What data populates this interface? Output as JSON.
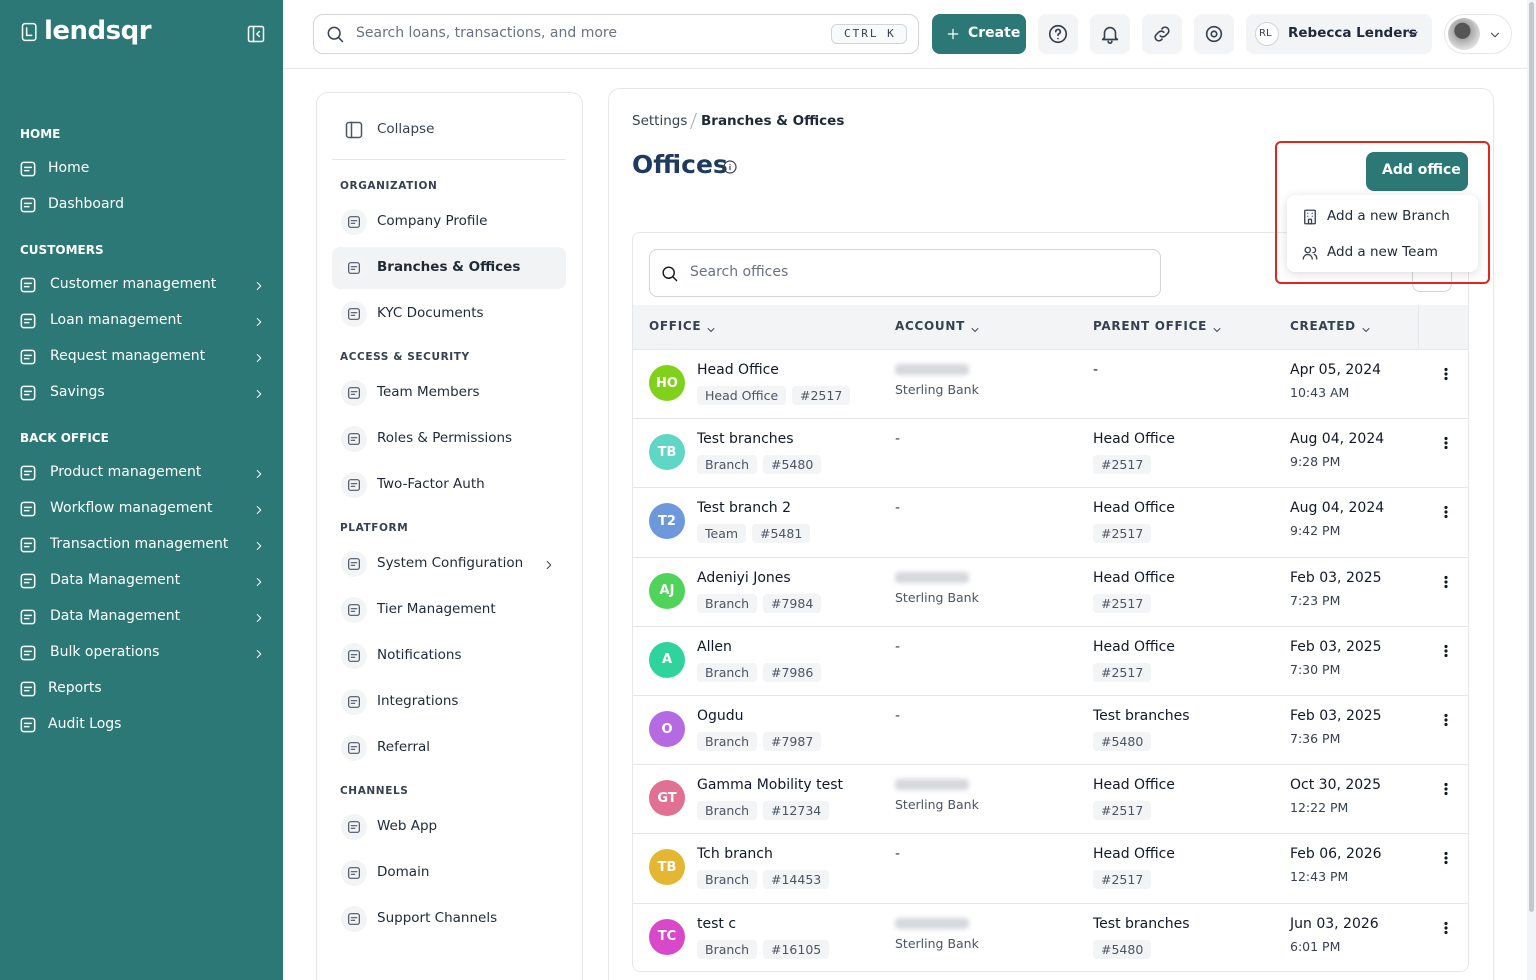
{
  "brand": {
    "name": "lendsqr"
  },
  "sidebar": {
    "sections": [
      {
        "title": "HOME",
        "items": [
          {
            "label": "Home"
          },
          {
            "label": "Dashboard"
          }
        ]
      },
      {
        "title": "CUSTOMERS",
        "items": [
          {
            "label": "Customer management",
            "expandable": true
          },
          {
            "label": "Loan management",
            "expandable": true
          },
          {
            "label": "Request management",
            "expandable": true
          },
          {
            "label": "Savings",
            "expandable": true
          }
        ]
      },
      {
        "title": "BACK OFFICE",
        "items": [
          {
            "label": "Product management",
            "expandable": true
          },
          {
            "label": "Workflow management",
            "expandable": true
          },
          {
            "label": "Transaction management",
            "expandable": true
          },
          {
            "label": "Data Management",
            "expandable": true
          },
          {
            "label": "Data Management",
            "expandable": true
          },
          {
            "label": "Bulk operations",
            "expandable": true
          },
          {
            "label": "Reports"
          },
          {
            "label": "Audit Logs"
          }
        ]
      }
    ]
  },
  "topbar": {
    "search_placeholder": "Search loans, transactions, and more",
    "shortcut": "CTRL K",
    "create": "Create",
    "user_initials": "RL",
    "user_name": "Rebecca Lenders"
  },
  "settings_nav": {
    "collapse": "Collapse",
    "groups": [
      {
        "title": "ORGANIZATION",
        "items": [
          {
            "label": "Company Profile"
          },
          {
            "label": "Branches & Offices",
            "active": true
          },
          {
            "label": "KYC Documents"
          }
        ]
      },
      {
        "title": "ACCESS & SECURITY",
        "items": [
          {
            "label": "Team Members"
          },
          {
            "label": "Roles & Permissions"
          },
          {
            "label": "Two-Factor Auth"
          }
        ]
      },
      {
        "title": "PLATFORM",
        "items": [
          {
            "label": "System Configuration",
            "expandable": true
          },
          {
            "label": "Tier Management"
          },
          {
            "label": "Notifications"
          },
          {
            "label": "Integrations"
          },
          {
            "label": "Referral"
          }
        ]
      },
      {
        "title": "CHANNELS",
        "items": [
          {
            "label": "Web App"
          },
          {
            "label": "Domain"
          },
          {
            "label": "Support Channels"
          }
        ]
      }
    ]
  },
  "breadcrumb": [
    "Settings",
    "Branches & Offices"
  ],
  "page": {
    "title": "Offices",
    "add_button": "Add office",
    "add_menu": [
      "Add a new Branch",
      "Add a new Team"
    ],
    "search_placeholder": "Search offices"
  },
  "table": {
    "columns": [
      "OFFICE",
      "ACCOUNT",
      "PARENT OFFICE",
      "CREATED"
    ],
    "rows": [
      {
        "initials": "HO",
        "color": "#7fd11b",
        "name": "Head Office",
        "type": "Head Office",
        "code": "#2517",
        "bank": "Sterling Bank",
        "parent": "-",
        "date": "Apr 05, 2024",
        "time": "10:43 AM"
      },
      {
        "initials": "TB",
        "color": "#5fd6c6",
        "name": "Test branches",
        "type": "Branch",
        "code": "#5480",
        "account": "-",
        "parent": "Head Office",
        "parent_code": "#2517",
        "date": "Aug 04, 2024",
        "time": "9:28 PM"
      },
      {
        "initials": "T2",
        "color": "#6d98dc",
        "name": "Test branch 2",
        "type": "Team",
        "code": "#5481",
        "account": "-",
        "parent": "Head Office",
        "parent_code": "#2517",
        "date": "Aug 04, 2024",
        "time": "9:42 PM"
      },
      {
        "initials": "AJ",
        "color": "#4fd35a",
        "name": "Adeniyi Jones",
        "type": "Branch",
        "code": "#7984",
        "bank": "Sterling Bank",
        "parent": "Head Office",
        "parent_code": "#2517",
        "date": "Feb 03, 2025",
        "time": "7:23 PM"
      },
      {
        "initials": "A",
        "color": "#2fd49c",
        "name": "Allen",
        "type": "Branch",
        "code": "#7986",
        "account": "-",
        "parent": "Head Office",
        "parent_code": "#2517",
        "date": "Feb 03, 2025",
        "time": "7:30 PM"
      },
      {
        "initials": "O",
        "color": "#b66ae2",
        "name": "Ogudu",
        "type": "Branch",
        "code": "#7987",
        "account": "-",
        "parent": "Test branches",
        "parent_code": "#5480",
        "date": "Feb 03, 2025",
        "time": "7:36 PM"
      },
      {
        "initials": "GT",
        "color": "#e27092",
        "name": "Gamma Mobility test",
        "type": "Branch",
        "code": "#12734",
        "bank": "Sterling Bank",
        "parent": "Head Office",
        "parent_code": "#2517",
        "date": "Oct 30, 2025",
        "time": "12:22 PM"
      },
      {
        "initials": "TB",
        "color": "#e5b631",
        "name": "Tch branch",
        "type": "Branch",
        "code": "#14453",
        "account": "-",
        "parent": "Head Office",
        "parent_code": "#2517",
        "date": "Feb 06, 2026",
        "time": "12:43 PM"
      },
      {
        "initials": "TC",
        "color": "#d948c9",
        "name": "test c",
        "type": "Branch",
        "code": "#16105",
        "bank": "Sterling Bank",
        "parent": "Test branches",
        "parent_code": "#5480",
        "date": "Jun 03, 2026",
        "time": "6:01 PM"
      }
    ]
  }
}
